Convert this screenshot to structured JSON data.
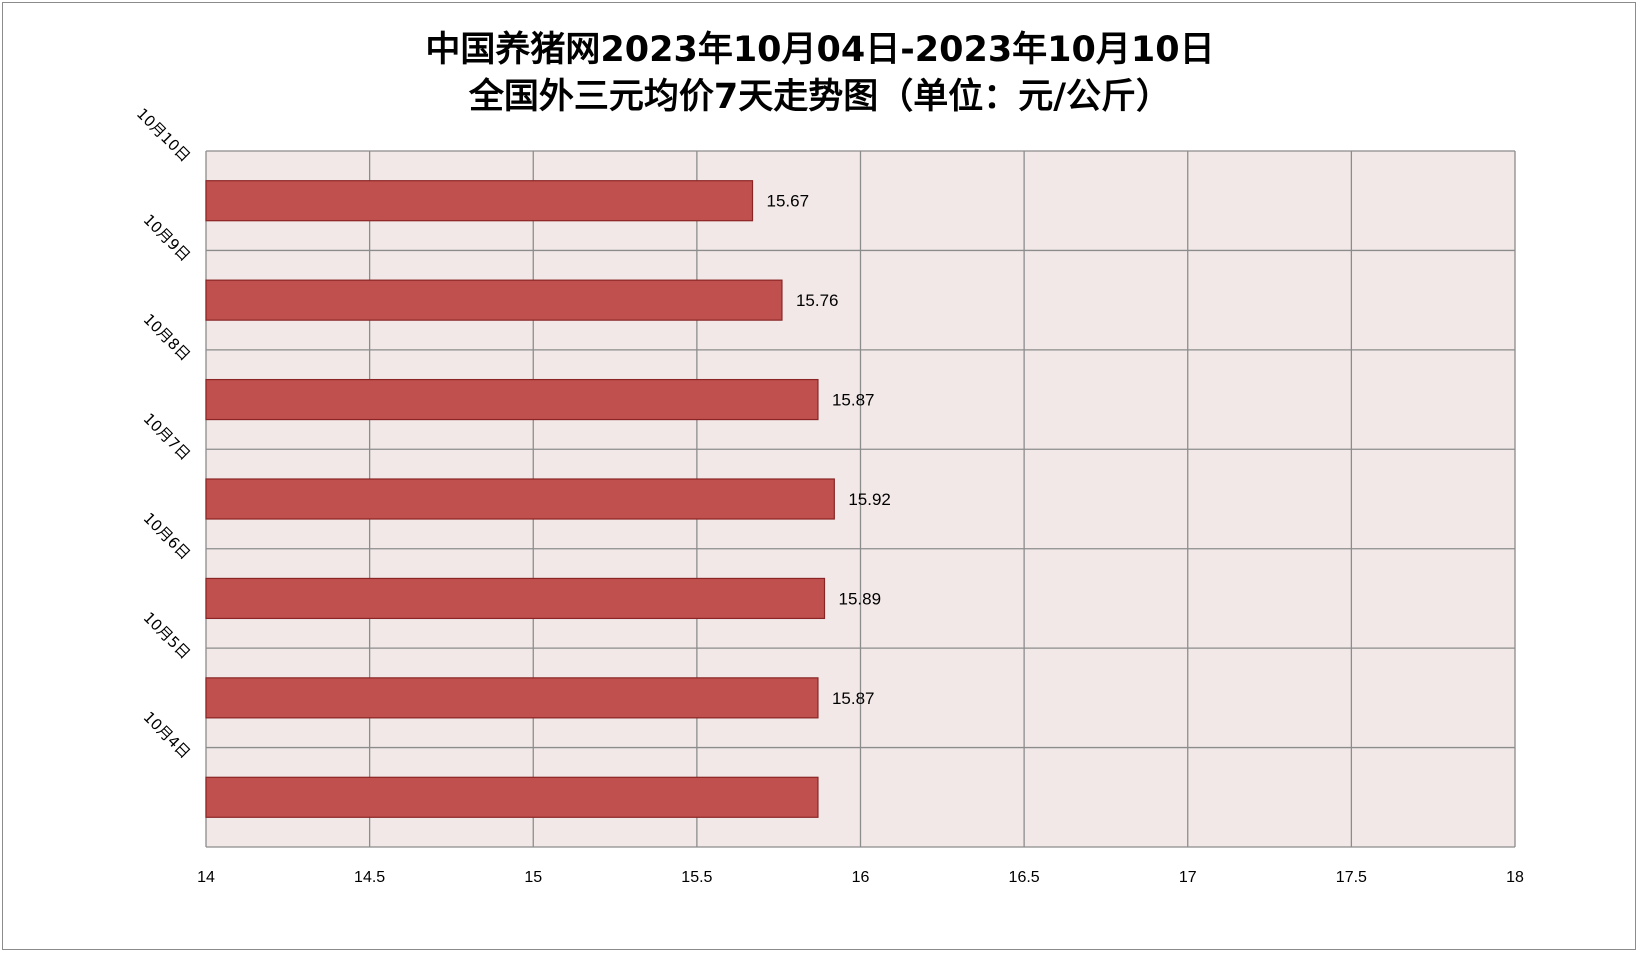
{
  "title": {
    "line1": "中国养猪网2023年10月04日-2023年10月10日",
    "line2": "全国外三元均价7天走势图（单位：元/公斤）"
  },
  "colors": {
    "bar_fill": "#C0504D",
    "bar_stroke": "#8B2525",
    "plot_bg": "#F2E8E8",
    "grid": "#8C8C8C"
  },
  "chart_data": {
    "type": "bar",
    "orientation": "horizontal",
    "categories": [
      "10月10日",
      "10月9日",
      "10月8日",
      "10月7日",
      "10月6日",
      "10月5日",
      "10月4日"
    ],
    "values": [
      15.67,
      15.76,
      15.87,
      15.92,
      15.89,
      15.87,
      15.87
    ],
    "data_labels": [
      "15.67",
      "15.76",
      "15.87",
      "15.92",
      "15.89",
      "15.87",
      ""
    ],
    "xlim": [
      14,
      18
    ],
    "x_ticks": [
      14,
      14.5,
      15,
      15.5,
      16,
      16.5,
      17,
      17.5,
      18
    ],
    "grid": true,
    "legend": "none"
  }
}
